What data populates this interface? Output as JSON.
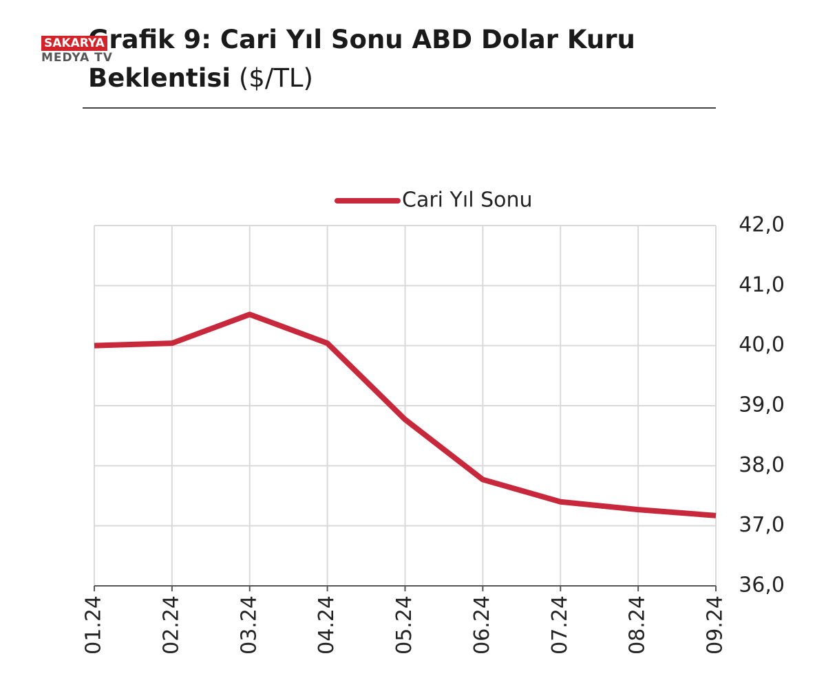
{
  "watermark": {
    "top": "SAKARYA",
    "bottom": "MEDYA TV"
  },
  "chart_data": {
    "type": "line",
    "title": "Grafik 9: Cari Yıl Sonu ABD Dolar Kuru Beklentisi",
    "unit": "($/TL)",
    "categories": [
      "01.24",
      "02.24",
      "03.24",
      "04.24",
      "05.24",
      "06.24",
      "07.24",
      "08.24",
      "09.24"
    ],
    "series": [
      {
        "name": "Cari Yıl Sonu",
        "color": "#c8283c",
        "values": [
          40.0,
          40.04,
          40.52,
          40.04,
          38.77,
          37.77,
          37.4,
          37.27,
          37.17
        ]
      }
    ],
    "ylim": [
      36,
      42
    ],
    "yticks": [
      {
        "value": 36,
        "label": "36,0"
      },
      {
        "value": 37,
        "label": "37,0"
      },
      {
        "value": 38,
        "label": "38,0"
      },
      {
        "value": 39,
        "label": "39,0"
      },
      {
        "value": 40,
        "label": "40,0"
      },
      {
        "value": 41,
        "label": "41,0"
      },
      {
        "value": 42,
        "label": "42,0"
      }
    ],
    "grid": true,
    "legend": "top"
  }
}
